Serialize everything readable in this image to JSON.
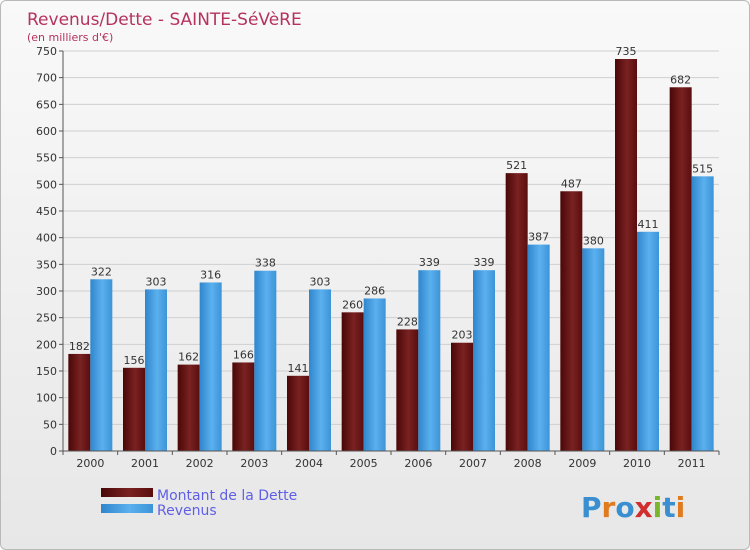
{
  "chart_data": {
    "type": "bar",
    "title": "Revenus/Dette - SAINTE-SéVèRE",
    "subtitle": "(en milliers d'€)",
    "categories": [
      "2000",
      "2001",
      "2002",
      "2003",
      "2004",
      "2005",
      "2006",
      "2007",
      "2008",
      "2009",
      "2010",
      "2011"
    ],
    "series": [
      {
        "name": "Montant de la Dette",
        "color": "#6b1818",
        "values": [
          182,
          156,
          162,
          166,
          141,
          260,
          228,
          203,
          521,
          487,
          735,
          682
        ]
      },
      {
        "name": "Revenus",
        "color": "#4aa3e6",
        "values": [
          322,
          303,
          316,
          338,
          303,
          286,
          339,
          339,
          387,
          380,
          411,
          515
        ]
      }
    ],
    "ylim": [
      0,
      750
    ],
    "yticks": [
      0,
      50,
      100,
      150,
      200,
      250,
      300,
      350,
      400,
      450,
      500,
      550,
      600,
      650,
      700,
      750
    ],
    "grid": true,
    "legend_position": "bottom-left"
  },
  "logo": {
    "text": "Proxiti",
    "letter_colors": [
      "#3a8fd0",
      "#e07b1f",
      "#3a8fd0",
      "#d12f2f",
      "#7ab62b",
      "#3a8fd0",
      "#e07b1f"
    ]
  }
}
